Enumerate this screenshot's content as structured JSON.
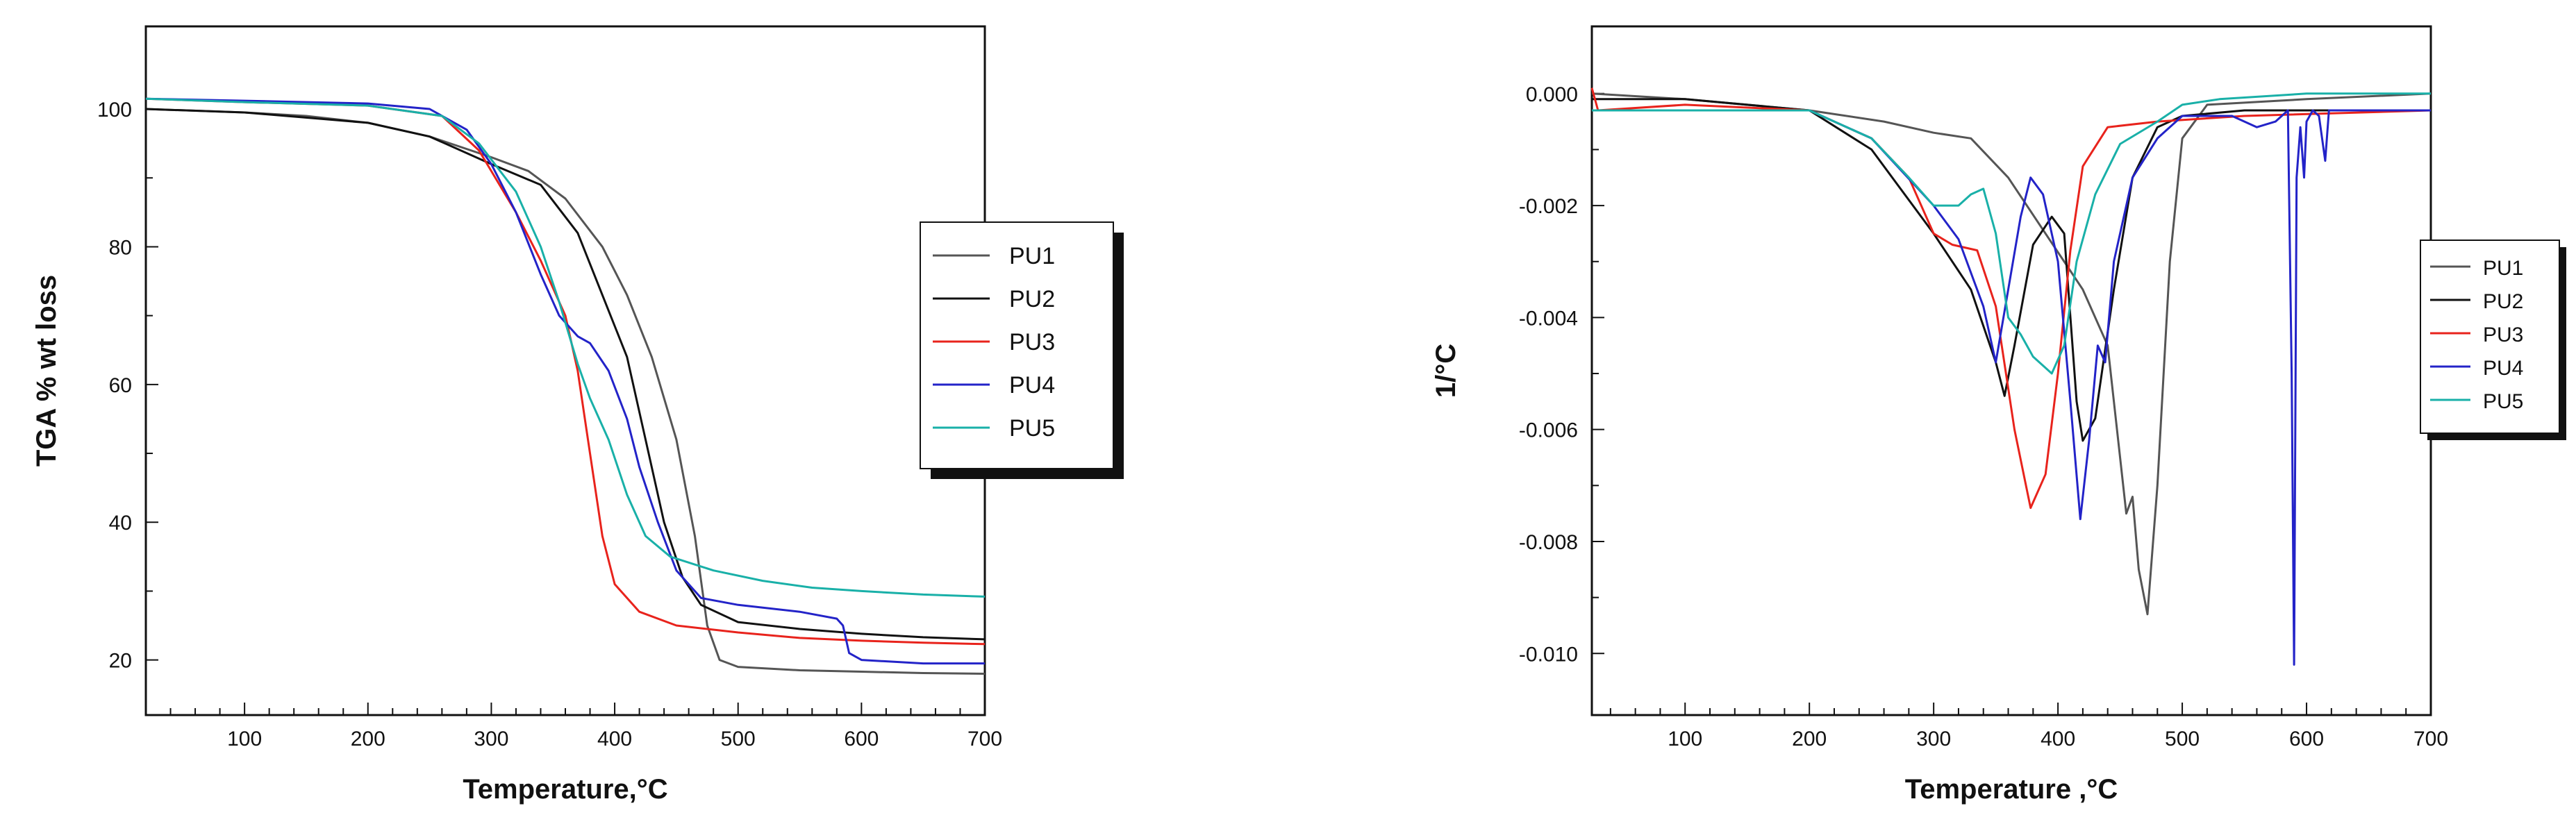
{
  "chart_data": [
    {
      "type": "line",
      "title": "",
      "xlabel": "Temperature,°C",
      "ylabel": "TGA % wt loss",
      "xlim": [
        20,
        700
      ],
      "ylim": [
        12,
        112
      ],
      "x_ticks": [
        100,
        200,
        300,
        400,
        500,
        600,
        700
      ],
      "y_ticks": [
        20,
        40,
        60,
        80,
        100
      ],
      "legend_position": "right",
      "series": [
        {
          "name": "PU1",
          "color": "#555555",
          "points": [
            [
              20,
              100
            ],
            [
              100,
              99.5
            ],
            [
              150,
              99
            ],
            [
              200,
              98
            ],
            [
              250,
              96
            ],
            [
              300,
              93
            ],
            [
              330,
              91
            ],
            [
              360,
              87
            ],
            [
              390,
              80
            ],
            [
              410,
              73
            ],
            [
              430,
              64
            ],
            [
              450,
              52
            ],
            [
              465,
              38
            ],
            [
              475,
              25
            ],
            [
              485,
              20
            ],
            [
              500,
              19
            ],
            [
              550,
              18.5
            ],
            [
              600,
              18.3
            ],
            [
              650,
              18.1
            ],
            [
              700,
              18
            ]
          ]
        },
        {
          "name": "PU2",
          "color": "#111111",
          "points": [
            [
              20,
              100
            ],
            [
              100,
              99.5
            ],
            [
              200,
              98
            ],
            [
              250,
              96
            ],
            [
              300,
              92
            ],
            [
              340,
              89
            ],
            [
              370,
              82
            ],
            [
              390,
              73
            ],
            [
              410,
              64
            ],
            [
              425,
              52
            ],
            [
              440,
              40
            ],
            [
              455,
              32
            ],
            [
              470,
              28
            ],
            [
              500,
              25.5
            ],
            [
              550,
              24.5
            ],
            [
              600,
              23.8
            ],
            [
              650,
              23.3
            ],
            [
              700,
              23
            ]
          ]
        },
        {
          "name": "PU3",
          "color": "#e8231c",
          "points": [
            [
              20,
              101.5
            ],
            [
              100,
              101
            ],
            [
              200,
              100.5
            ],
            [
              260,
              99
            ],
            [
              290,
              94
            ],
            [
              320,
              85
            ],
            [
              340,
              78
            ],
            [
              360,
              70
            ],
            [
              370,
              62
            ],
            [
              380,
              50
            ],
            [
              390,
              38
            ],
            [
              400,
              31
            ],
            [
              420,
              27
            ],
            [
              450,
              25
            ],
            [
              500,
              24
            ],
            [
              550,
              23.2
            ],
            [
              600,
              22.8
            ],
            [
              650,
              22.5
            ],
            [
              700,
              22.3
            ]
          ]
        },
        {
          "name": "PU4",
          "color": "#2323c8",
          "points": [
            [
              20,
              101.5
            ],
            [
              100,
              101.2
            ],
            [
              200,
              100.8
            ],
            [
              250,
              100
            ],
            [
              280,
              97
            ],
            [
              300,
              92
            ],
            [
              320,
              85
            ],
            [
              340,
              76
            ],
            [
              355,
              70
            ],
            [
              370,
              67
            ],
            [
              380,
              66
            ],
            [
              395,
              62
            ],
            [
              410,
              55
            ],
            [
              420,
              48
            ],
            [
              435,
              40
            ],
            [
              450,
              33
            ],
            [
              470,
              29
            ],
            [
              500,
              28
            ],
            [
              550,
              27
            ],
            [
              580,
              26
            ],
            [
              585,
              25
            ],
            [
              590,
              21
            ],
            [
              600,
              20
            ],
            [
              650,
              19.5
            ],
            [
              700,
              19.5
            ]
          ]
        },
        {
          "name": "PU5",
          "color": "#19b0a8",
          "points": [
            [
              20,
              101.5
            ],
            [
              100,
              101
            ],
            [
              200,
              100.5
            ],
            [
              260,
              99
            ],
            [
              290,
              95
            ],
            [
              320,
              88
            ],
            [
              340,
              80
            ],
            [
              355,
              72
            ],
            [
              370,
              63
            ],
            [
              380,
              58
            ],
            [
              395,
              52
            ],
            [
              410,
              44
            ],
            [
              425,
              38
            ],
            [
              445,
              35
            ],
            [
              480,
              33
            ],
            [
              520,
              31.5
            ],
            [
              560,
              30.5
            ],
            [
              600,
              30
            ],
            [
              650,
              29.5
            ],
            [
              700,
              29.2
            ]
          ]
        }
      ]
    },
    {
      "type": "line",
      "title": "",
      "xlabel": "Temperature ,°C",
      "ylabel": "1/°C",
      "xlim": [
        25,
        700
      ],
      "ylim": [
        -0.0111,
        0.0012
      ],
      "x_ticks": [
        100,
        200,
        300,
        400,
        500,
        600,
        700
      ],
      "y_ticks": [
        0.0,
        -0.002,
        -0.004,
        -0.006,
        -0.008,
        -0.01
      ],
      "y_tick_labels": [
        "0.000",
        "-0.002",
        "-0.004",
        "-0.006",
        "-0.008",
        "-0.010"
      ],
      "legend_position": "right",
      "series": [
        {
          "name": "PU1",
          "color": "#555555",
          "points": [
            [
              25,
              0
            ],
            [
              100,
              -0.0001
            ],
            [
              200,
              -0.0003
            ],
            [
              260,
              -0.0005
            ],
            [
              300,
              -0.0007
            ],
            [
              330,
              -0.0008
            ],
            [
              360,
              -0.0015
            ],
            [
              390,
              -0.0025
            ],
            [
              420,
              -0.0035
            ],
            [
              440,
              -0.0045
            ],
            [
              455,
              -0.0075
            ],
            [
              460,
              -0.0072
            ],
            [
              465,
              -0.0085
            ],
            [
              472,
              -0.0093
            ],
            [
              480,
              -0.007
            ],
            [
              490,
              -0.003
            ],
            [
              500,
              -0.0008
            ],
            [
              520,
              -0.0002
            ],
            [
              600,
              -0.0001
            ],
            [
              700,
              0
            ]
          ]
        },
        {
          "name": "PU2",
          "color": "#111111",
          "points": [
            [
              25,
              -0.0001
            ],
            [
              100,
              -0.0001
            ],
            [
              200,
              -0.0003
            ],
            [
              250,
              -0.001
            ],
            [
              300,
              -0.0025
            ],
            [
              330,
              -0.0035
            ],
            [
              350,
              -0.0048
            ],
            [
              357,
              -0.0054
            ],
            [
              365,
              -0.0045
            ],
            [
              380,
              -0.0027
            ],
            [
              395,
              -0.0022
            ],
            [
              405,
              -0.0025
            ],
            [
              415,
              -0.0055
            ],
            [
              420,
              -0.0062
            ],
            [
              430,
              -0.0058
            ],
            [
              445,
              -0.0035
            ],
            [
              460,
              -0.0015
            ],
            [
              480,
              -0.0006
            ],
            [
              500,
              -0.0004
            ],
            [
              550,
              -0.0003
            ],
            [
              700,
              -0.0003
            ]
          ]
        },
        {
          "name": "PU3",
          "color": "#e8231c",
          "points": [
            [
              25,
              0.0001
            ],
            [
              30,
              -0.0003
            ],
            [
              100,
              -0.0002
            ],
            [
              200,
              -0.0003
            ],
            [
              250,
              -0.0008
            ],
            [
              280,
              -0.0015
            ],
            [
              300,
              -0.0025
            ],
            [
              315,
              -0.0027
            ],
            [
              335,
              -0.0028
            ],
            [
              350,
              -0.0038
            ],
            [
              365,
              -0.006
            ],
            [
              378,
              -0.0074
            ],
            [
              390,
              -0.0068
            ],
            [
              400,
              -0.005
            ],
            [
              410,
              -0.0028
            ],
            [
              420,
              -0.0013
            ],
            [
              440,
              -0.0006
            ],
            [
              480,
              -0.0005
            ],
            [
              550,
              -0.0004
            ],
            [
              700,
              -0.0003
            ]
          ]
        },
        {
          "name": "PU4",
          "color": "#2323c8",
          "points": [
            [
              25,
              -0.0003
            ],
            [
              100,
              -0.0003
            ],
            [
              200,
              -0.0003
            ],
            [
              250,
              -0.0008
            ],
            [
              300,
              -0.002
            ],
            [
              320,
              -0.0026
            ],
            [
              340,
              -0.0038
            ],
            [
              350,
              -0.0048
            ],
            [
              360,
              -0.0035
            ],
            [
              370,
              -0.0022
            ],
            [
              378,
              -0.0015
            ],
            [
              388,
              -0.0018
            ],
            [
              400,
              -0.003
            ],
            [
              410,
              -0.0055
            ],
            [
              418,
              -0.0076
            ],
            [
              425,
              -0.0062
            ],
            [
              432,
              -0.0045
            ],
            [
              438,
              -0.0048
            ],
            [
              445,
              -0.003
            ],
            [
              460,
              -0.0015
            ],
            [
              480,
              -0.0008
            ],
            [
              500,
              -0.0004
            ],
            [
              540,
              -0.0004
            ],
            [
              560,
              -0.0006
            ],
            [
              575,
              -0.0005
            ],
            [
              585,
              -0.0003
            ],
            [
              588,
              -0.005
            ],
            [
              590,
              -0.0102
            ],
            [
              592,
              -0.0015
            ],
            [
              595,
              -0.0006
            ],
            [
              598,
              -0.0015
            ],
            [
              600,
              -0.0005
            ],
            [
              605,
              -0.0003
            ],
            [
              610,
              -0.0004
            ],
            [
              615,
              -0.0012
            ],
            [
              618,
              -0.0003
            ],
            [
              700,
              -0.0003
            ]
          ]
        },
        {
          "name": "PU5",
          "color": "#19b0a8",
          "points": [
            [
              25,
              -0.0003
            ],
            [
              100,
              -0.0003
            ],
            [
              200,
              -0.0003
            ],
            [
              250,
              -0.0008
            ],
            [
              280,
              -0.0015
            ],
            [
              300,
              -0.002
            ],
            [
              320,
              -0.002
            ],
            [
              330,
              -0.0018
            ],
            [
              340,
              -0.0017
            ],
            [
              350,
              -0.0025
            ],
            [
              360,
              -0.004
            ],
            [
              370,
              -0.0043
            ],
            [
              380,
              -0.0047
            ],
            [
              395,
              -0.005
            ],
            [
              405,
              -0.0045
            ],
            [
              415,
              -0.003
            ],
            [
              430,
              -0.0018
            ],
            [
              450,
              -0.0009
            ],
            [
              480,
              -0.0005
            ],
            [
              500,
              -0.0002
            ],
            [
              530,
              -0.0001
            ],
            [
              600,
              0
            ],
            [
              700,
              0
            ]
          ]
        }
      ]
    }
  ]
}
